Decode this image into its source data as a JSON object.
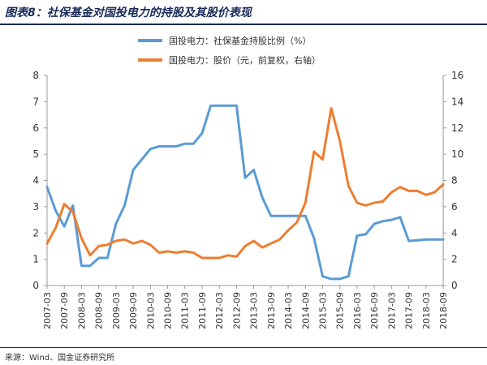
{
  "header": {
    "title": "图表8：社保基金对国投电力的持股及其股价表现"
  },
  "footer": {
    "source": "来源：Wind、国金证券研究所"
  },
  "colors": {
    "series_left": "#5b9bd5",
    "series_right": "#ed7d31",
    "title": "#1a2b5a",
    "axis": "#999999"
  },
  "chart_data": {
    "type": "line",
    "title": "",
    "xlabel": "",
    "ylabel": "",
    "grid": false,
    "legend_position": "top-center",
    "x_ticks": [
      "2007-03",
      "2007-09",
      "2008-03",
      "2008-09",
      "2009-03",
      "2009-09",
      "2010-03",
      "2010-09",
      "2011-03",
      "2011-09",
      "2012-03",
      "2012-09",
      "2013-03",
      "2013-09",
      "2014-03",
      "2014-09",
      "2015-03",
      "2015-09",
      "2016-03",
      "2016-09",
      "2017-03",
      "2017-09",
      "2018-03",
      "2018-09"
    ],
    "y_left": {
      "ylim": [
        0,
        8
      ],
      "ticks": [
        "0",
        "1",
        "2",
        "3",
        "4",
        "5",
        "6",
        "7",
        "8"
      ]
    },
    "y_right": {
      "ylim": [
        0,
        16
      ],
      "ticks": [
        "0",
        "2",
        "4",
        "6",
        "8",
        "10",
        "12",
        "14",
        "16"
      ]
    },
    "series": [
      {
        "name": "国投电力：社保基金持股比例（%）",
        "axis": "left",
        "x": [
          "2007-03",
          "2007-06",
          "2007-09",
          "2007-12",
          "2008-03",
          "2008-06",
          "2008-09",
          "2008-12",
          "2009-03",
          "2009-06",
          "2009-09",
          "2009-12",
          "2010-03",
          "2010-06",
          "2010-09",
          "2010-12",
          "2011-03",
          "2011-06",
          "2011-09",
          "2011-12",
          "2012-03",
          "2012-06",
          "2012-09",
          "2012-12",
          "2013-03",
          "2013-06",
          "2013-09",
          "2013-12",
          "2014-03",
          "2014-06",
          "2014-09",
          "2014-12",
          "2015-03",
          "2015-06",
          "2015-09",
          "2015-12",
          "2016-03",
          "2016-06",
          "2016-09",
          "2016-12",
          "2017-03",
          "2017-06",
          "2017-09",
          "2017-12",
          "2018-03",
          "2018-06",
          "2018-09"
        ],
        "values": [
          3.75,
          2.85,
          2.25,
          3.05,
          0.75,
          0.75,
          1.05,
          1.05,
          2.35,
          3.05,
          4.4,
          4.8,
          5.2,
          5.3,
          5.3,
          5.3,
          5.4,
          5.4,
          5.8,
          6.85,
          6.85,
          6.85,
          6.85,
          4.1,
          4.4,
          3.35,
          2.65,
          2.65,
          2.65,
          2.65,
          2.65,
          1.8,
          0.35,
          0.25,
          0.25,
          0.35,
          1.9,
          1.95,
          2.35,
          2.45,
          2.5,
          2.6,
          1.7,
          1.72,
          1.75,
          1.75,
          1.75
        ]
      },
      {
        "name": "国投电力：股价（元，前复权，右轴）",
        "axis": "right",
        "x": [
          "2007-03",
          "2007-06",
          "2007-09",
          "2007-12",
          "2008-03",
          "2008-06",
          "2008-09",
          "2008-12",
          "2009-03",
          "2009-06",
          "2009-09",
          "2009-12",
          "2010-03",
          "2010-06",
          "2010-09",
          "2010-12",
          "2011-03",
          "2011-06",
          "2011-09",
          "2011-12",
          "2012-03",
          "2012-06",
          "2012-09",
          "2012-12",
          "2013-03",
          "2013-06",
          "2013-09",
          "2013-12",
          "2014-03",
          "2014-06",
          "2014-09",
          "2014-12",
          "2015-03",
          "2015-06",
          "2015-09",
          "2015-12",
          "2016-03",
          "2016-06",
          "2016-09",
          "2016-12",
          "2017-03",
          "2017-06",
          "2017-09",
          "2017-12",
          "2018-03",
          "2018-06",
          "2018-09"
        ],
        "values": [
          3.2,
          4.4,
          6.2,
          5.6,
          3.6,
          2.3,
          3.0,
          3.1,
          3.4,
          3.5,
          3.2,
          3.4,
          3.1,
          2.5,
          2.6,
          2.5,
          2.6,
          2.5,
          2.1,
          2.1,
          2.1,
          2.3,
          2.2,
          3.0,
          3.4,
          2.9,
          3.2,
          3.5,
          4.2,
          4.8,
          6.3,
          10.2,
          9.6,
          13.5,
          11.0,
          7.6,
          6.3,
          6.1,
          6.3,
          6.4,
          7.1,
          7.5,
          7.2,
          7.2,
          6.9,
          7.1,
          7.7
        ]
      }
    ]
  }
}
